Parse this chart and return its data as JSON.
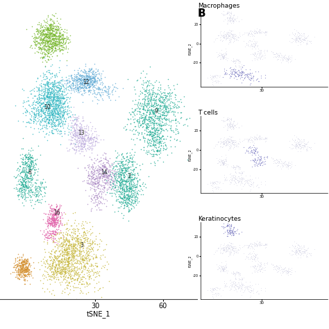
{
  "xlabel": "tSNE_1",
  "x_ticks": [
    30,
    60
  ],
  "panel_label": "B",
  "sub_titles": [
    "Macrophages",
    "T cells",
    "Keratinocytes"
  ],
  "background_color": "#ffffff",
  "dot_size": 1.2,
  "xlim": [
    -12,
    75
  ],
  "ylim": [
    -45,
    35
  ],
  "cluster_specs": [
    [
      8,
      26,
      800,
      6,
      5,
      "#7ab832"
    ],
    [
      10,
      8,
      1200,
      8,
      7,
      "#3bbac5"
    ],
    [
      26,
      14,
      600,
      8,
      4,
      "#6ab0d8"
    ],
    [
      26,
      0,
      400,
      6,
      5,
      "#c0b0e0"
    ],
    [
      32,
      -11,
      500,
      6,
      5,
      "#b090c8"
    ],
    [
      57,
      5,
      1000,
      8,
      8,
      "#2db09a"
    ],
    [
      45,
      -13,
      700,
      7,
      6,
      "#2db09a"
    ],
    [
      2,
      -12,
      500,
      5,
      6,
      "#2db09a"
    ],
    [
      13,
      -22,
      350,
      5,
      3,
      "#e060a8"
    ],
    [
      22,
      -32,
      1200,
      10,
      8,
      "#c8b840"
    ],
    [
      -2,
      -36,
      350,
      4,
      4,
      "#d49030"
    ]
  ],
  "labels": [
    [
      9,
      8,
      "10"
    ],
    [
      26,
      15,
      "12"
    ],
    [
      24,
      1,
      "13"
    ],
    [
      34,
      -10,
      "14"
    ],
    [
      13,
      -21,
      "16"
    ],
    [
      24,
      -30,
      "3"
    ],
    [
      45,
      -11,
      "7"
    ],
    [
      1,
      -10,
      "8"
    ],
    [
      57,
      7,
      "9"
    ]
  ],
  "macro_highlight": [
    9
  ],
  "tcell_highlight": [
    3,
    4
  ],
  "kera_highlight": [
    0
  ]
}
